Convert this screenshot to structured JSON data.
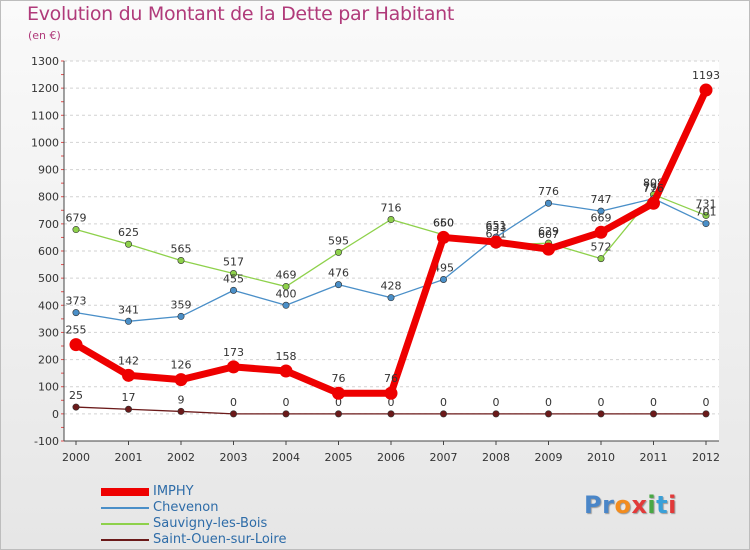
{
  "title": "Evolution du Montant de la Dette par Habitant",
  "subtitle": "(en €)",
  "logo": {
    "text": "Proxiti",
    "colors": [
      "#4a86c8",
      "#4a86c8",
      "#f28c1e",
      "#e23a3a",
      "#49a845",
      "#3aa0d8",
      "#e23a3a"
    ]
  },
  "chart_data": {
    "type": "line",
    "title": "Evolution du Montant de la Dette par Habitant",
    "ylabel": "(en €)",
    "xlabel": "",
    "x": [
      "2000",
      "2001",
      "2002",
      "2003",
      "2004",
      "2005",
      "2006",
      "2007",
      "2008",
      "2009",
      "2010",
      "2011",
      "2012"
    ],
    "ylim": [
      -100,
      1300
    ],
    "yticks": [
      -100,
      0,
      100,
      200,
      300,
      400,
      500,
      600,
      700,
      800,
      900,
      1000,
      1100,
      1200,
      1300
    ],
    "grid": "horizontal",
    "legend": "bottom-left",
    "series": [
      {
        "name": "Saint-Ouen-sur-Loire",
        "color": "#6b1a1a",
        "values": [
          25,
          17,
          9,
          0,
          0,
          0,
          0,
          0,
          0,
          0,
          0,
          0,
          0
        ]
      },
      {
        "name": "Sauvigny-les-Bois",
        "color": "#8ed14b",
        "values": [
          679,
          625,
          565,
          517,
          469,
          595,
          716,
          660,
          621,
          629,
          572,
          808,
          731
        ]
      },
      {
        "name": "Chevenon",
        "color": "#4a8fc8",
        "values": [
          373,
          341,
          359,
          455,
          400,
          476,
          428,
          495,
          651,
          776,
          747,
          793,
          701
        ]
      },
      {
        "name": "IMPHY",
        "color": "#ee0000",
        "values": [
          255,
          142,
          126,
          173,
          158,
          76,
          76,
          650,
          633,
          607,
          669,
          776,
          1193
        ]
      }
    ]
  }
}
